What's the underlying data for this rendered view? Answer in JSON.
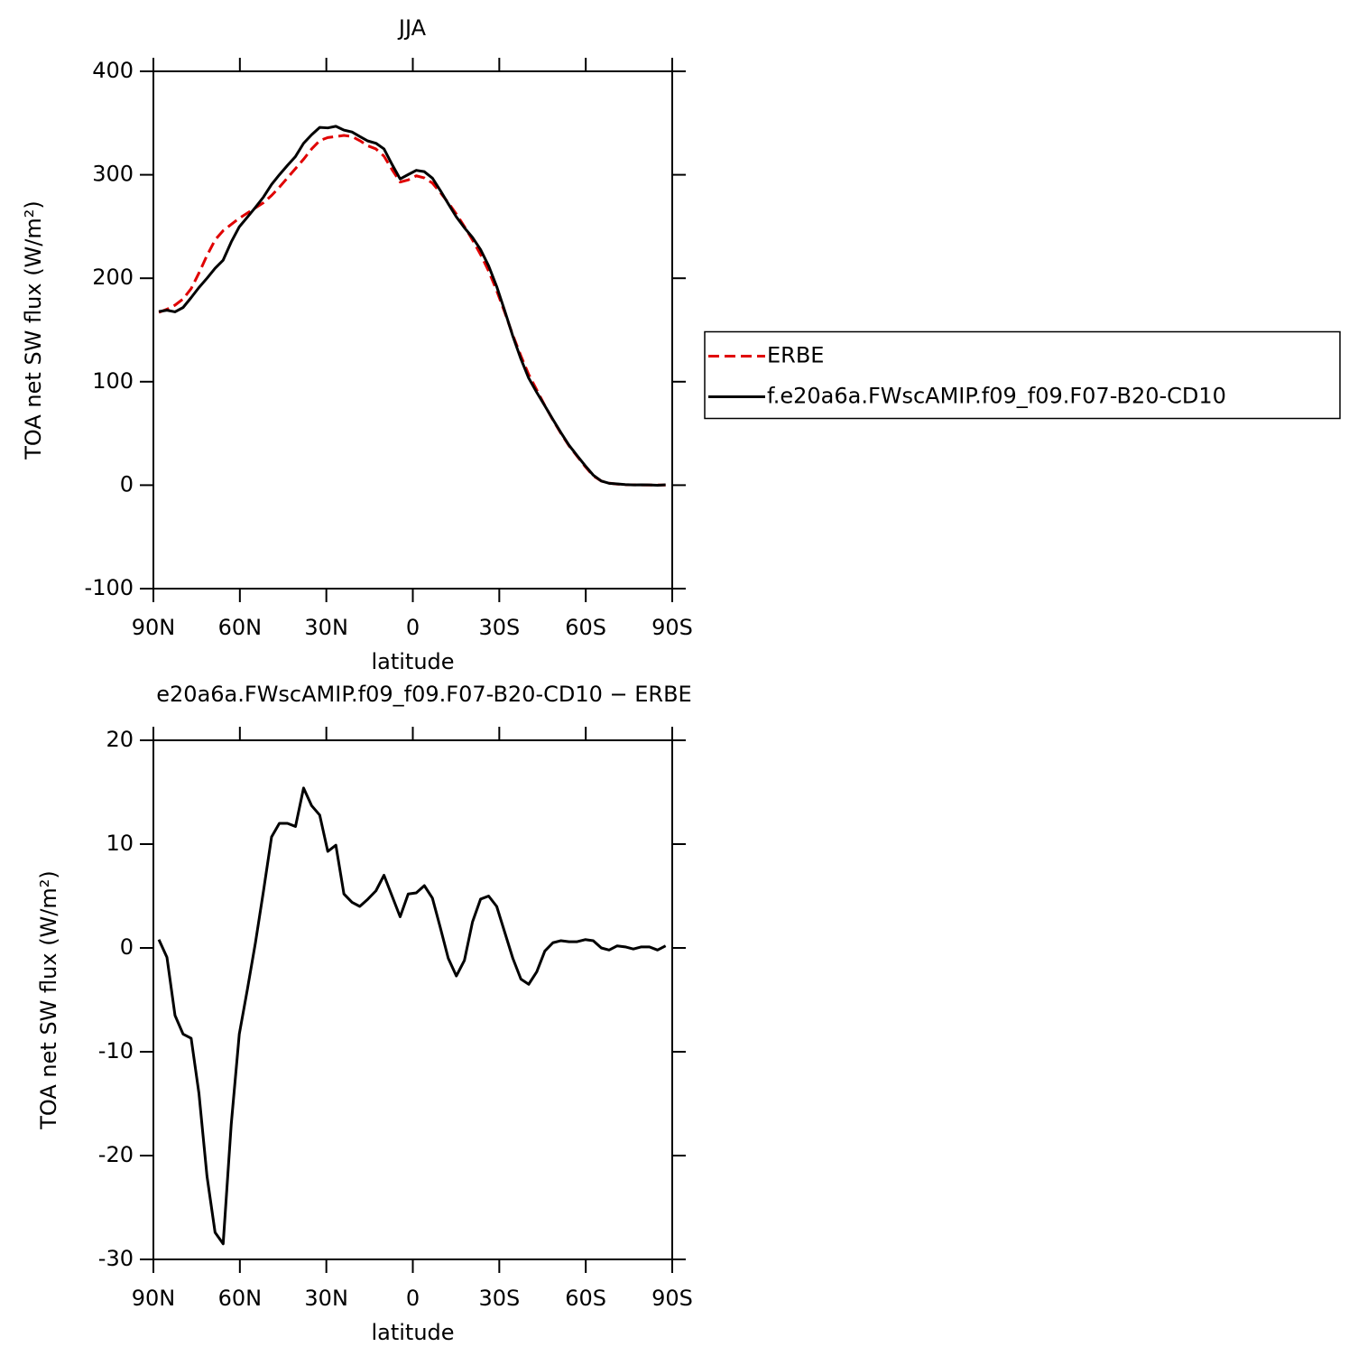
{
  "chart_data": [
    {
      "type": "line",
      "title": "JJA",
      "x_label": "latitude",
      "y_label": "TOA net SW flux (W/m²)",
      "x": [
        88.1,
        85.3,
        82.5,
        79.7,
        76.9,
        74.2,
        71.4,
        68.6,
        65.8,
        63.0,
        60.2,
        57.4,
        54.6,
        51.8,
        49.0,
        46.3,
        43.5,
        40.7,
        37.9,
        35.1,
        32.3,
        29.5,
        26.7,
        23.9,
        21.1,
        18.4,
        15.6,
        12.8,
        10.0,
        7.2,
        4.4,
        1.6,
        -1.2,
        -4.0,
        -6.8,
        -9.5,
        -12.3,
        -15.1,
        -17.9,
        -20.7,
        -23.5,
        -26.3,
        -29.1,
        -31.9,
        -34.7,
        -37.5,
        -40.2,
        -43.0,
        -45.8,
        -48.6,
        -51.4,
        -54.2,
        -57.0,
        -59.8,
        -62.6,
        -65.4,
        -68.1,
        -70.9,
        -73.7,
        -76.5,
        -79.3,
        -82.1,
        -84.9,
        -87.7
      ],
      "series": [
        {
          "name": "ERBE",
          "color": "#e00000",
          "dashed": true,
          "values": [
            167,
            170,
            174,
            180,
            190,
            205,
            222,
            237,
            246,
            252,
            258,
            263,
            268,
            273,
            280,
            288,
            297,
            306,
            315,
            325,
            333,
            336,
            337,
            338,
            337,
            333,
            328,
            325,
            318,
            305,
            293,
            295,
            299,
            297,
            292,
            283,
            273,
            262,
            250,
            237,
            223,
            207,
            188,
            167,
            145,
            125,
            107,
            92,
            77,
            63,
            50,
            38,
            28,
            18,
            9,
            4,
            2,
            1,
            0.5,
            0.3,
            0.2,
            0.1,
            0.1,
            0.1
          ]
        },
        {
          "name": "f.e20a6a.FWscAMIP.f09_f09.F07-B20-CD10",
          "color": "#000000",
          "dashed": false,
          "values": [
            167.8,
            169.1,
            167.5,
            171.7,
            181.3,
            191,
            200,
            209.6,
            217.5,
            235,
            249.7,
            259,
            268.5,
            278.5,
            290.7,
            300,
            309,
            317.7,
            330.4,
            338.7,
            345.8,
            345.3,
            346.9,
            343.2,
            341.4,
            337,
            332.7,
            330.5,
            325,
            310,
            296,
            300.2,
            304.3,
            303,
            296.8,
            285,
            272,
            259.3,
            248.8,
            239.5,
            227.7,
            212,
            192,
            168.5,
            144,
            122,
            103.5,
            89.7,
            76.7,
            63.5,
            50.7,
            38.6,
            28.6,
            18.8,
            9.7,
            4,
            1.8,
            1.2,
            0.6,
            0.2,
            0.3,
            0.2,
            -0.1,
            0.3
          ]
        }
      ],
      "xlim": [
        90,
        -90
      ],
      "xticks": [
        {
          "value": 90,
          "label": "90N"
        },
        {
          "value": 60,
          "label": "60N"
        },
        {
          "value": 30,
          "label": "30N"
        },
        0,
        {
          "value": -30,
          "label": "30S"
        },
        {
          "value": -60,
          "label": "60S"
        },
        {
          "value": -90,
          "label": "90S"
        }
      ],
      "ylim": [
        -100,
        400
      ],
      "yticks": [
        -100,
        0,
        100,
        200,
        300,
        400
      ],
      "legend": "right"
    },
    {
      "type": "line",
      "title": "e20a6a.FWscAMIP.f09_f09.F07-B20-CD10 − ERBE",
      "x_label": "latitude",
      "y_label": "TOA net SW flux (W/m²)",
      "x": [
        88.1,
        85.3,
        82.5,
        79.7,
        76.9,
        74.2,
        71.4,
        68.6,
        65.8,
        63.0,
        60.2,
        57.4,
        54.6,
        51.8,
        49.0,
        46.3,
        43.5,
        40.7,
        37.9,
        35.1,
        32.3,
        29.5,
        26.7,
        23.9,
        21.1,
        18.4,
        15.6,
        12.8,
        10.0,
        7.2,
        4.4,
        1.6,
        -1.2,
        -4.0,
        -6.8,
        -9.5,
        -12.3,
        -15.1,
        -17.9,
        -20.7,
        -23.5,
        -26.3,
        -29.1,
        -31.9,
        -34.7,
        -37.5,
        -40.2,
        -43.0,
        -45.8,
        -48.6,
        -51.4,
        -54.2,
        -57.0,
        -59.8,
        -62.6,
        -65.4,
        -68.1,
        -70.9,
        -73.7,
        -76.5,
        -79.3,
        -82.1,
        -84.9,
        -87.7
      ],
      "series": [
        {
          "color": "#000000",
          "dashed": false,
          "values": [
            0.8,
            -0.9,
            -6.5,
            -8.3,
            -8.7,
            -14,
            -22,
            -27.4,
            -28.5,
            -17,
            -8.3,
            -4,
            0.5,
            5.5,
            10.7,
            12,
            12,
            11.7,
            15.4,
            13.7,
            12.8,
            9.3,
            9.9,
            5.2,
            4.4,
            4,
            4.7,
            5.5,
            7,
            5,
            3,
            5.2,
            5.3,
            6,
            4.8,
            2,
            -1,
            -2.7,
            -1.2,
            2.5,
            4.7,
            5,
            4,
            1.5,
            -1,
            -3,
            -3.5,
            -2.3,
            -0.3,
            0.5,
            0.7,
            0.6,
            0.6,
            0.8,
            0.7,
            0,
            -0.2,
            0.2,
            0.1,
            -0.1,
            0.1,
            0.1,
            -0.2,
            0.2
          ]
        }
      ],
      "xlim": [
        90,
        -90
      ],
      "xticks": [
        {
          "value": 90,
          "label": "90N"
        },
        {
          "value": 60,
          "label": "60N"
        },
        {
          "value": 30,
          "label": "30N"
        },
        0,
        {
          "value": -30,
          "label": "30S"
        },
        {
          "value": -60,
          "label": "60S"
        },
        {
          "value": -90,
          "label": "90S"
        }
      ],
      "ylim": [
        -30,
        20
      ],
      "yticks": [
        -30,
        -20,
        -10,
        0,
        10,
        20
      ]
    }
  ]
}
